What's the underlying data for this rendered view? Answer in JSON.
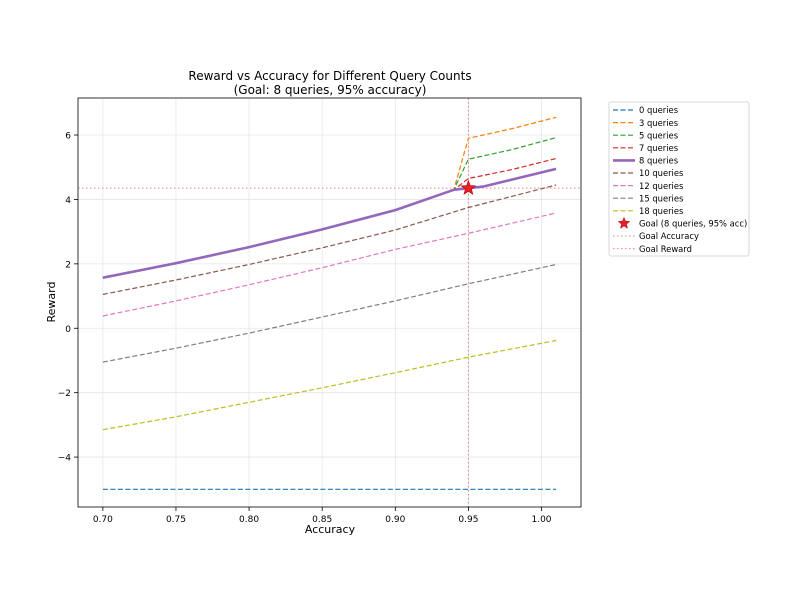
{
  "chart_data": {
    "type": "line",
    "title": "Reward vs Accuracy for Different Query Counts",
    "subtitle": "(Goal: 8 queries, 95% accuracy)",
    "xlabel": "Accuracy",
    "ylabel": "Reward",
    "xlim": [
      0.683,
      1.027
    ],
    "ylim": [
      -5.55,
      7.15
    ],
    "xticks": [
      0.7,
      0.75,
      0.8,
      0.85,
      0.9,
      0.95,
      1.0
    ],
    "xtick_labels": [
      "0.70",
      "0.75",
      "0.80",
      "0.85",
      "0.90",
      "0.95",
      "1.00"
    ],
    "yticks": [
      -4,
      -2,
      0,
      2,
      4,
      6
    ],
    "ytick_labels": [
      "−4",
      "−2",
      "0",
      "2",
      "4",
      "6"
    ],
    "grid": true,
    "legend_position": "outside-right-top",
    "series": [
      {
        "name": "0 queries",
        "color": "#1f77b4",
        "style": "dashed",
        "width": 1.2,
        "points": [
          [
            0.7,
            -5.0
          ],
          [
            1.01,
            -5.0
          ]
        ]
      },
      {
        "name": "3 queries",
        "color": "#ff7f0e",
        "style": "dashed",
        "width": 1.2,
        "points": [
          [
            0.7,
            1.57
          ],
          [
            0.75,
            2.02
          ],
          [
            0.8,
            2.52
          ],
          [
            0.85,
            3.07
          ],
          [
            0.9,
            3.67
          ],
          [
            0.94,
            4.3
          ],
          [
            0.95,
            5.9
          ],
          [
            0.98,
            6.2
          ],
          [
            1.01,
            6.55
          ]
        ]
      },
      {
        "name": "5 queries",
        "color": "#2ca02c",
        "style": "dashed",
        "width": 1.2,
        "points": [
          [
            0.7,
            1.57
          ],
          [
            0.75,
            2.02
          ],
          [
            0.8,
            2.52
          ],
          [
            0.85,
            3.07
          ],
          [
            0.9,
            3.67
          ],
          [
            0.94,
            4.3
          ],
          [
            0.95,
            5.25
          ],
          [
            0.98,
            5.55
          ],
          [
            1.01,
            5.92
          ]
        ]
      },
      {
        "name": "7 queries",
        "color": "#d62728",
        "style": "dashed",
        "width": 1.2,
        "points": [
          [
            0.7,
            1.57
          ],
          [
            0.75,
            2.02
          ],
          [
            0.8,
            2.52
          ],
          [
            0.85,
            3.07
          ],
          [
            0.9,
            3.67
          ],
          [
            0.94,
            4.3
          ],
          [
            0.95,
            4.65
          ],
          [
            0.98,
            4.93
          ],
          [
            1.01,
            5.27
          ]
        ]
      },
      {
        "name": "8 queries",
        "color": "#9467bd",
        "style": "solid",
        "width": 2.6,
        "points": [
          [
            0.7,
            1.57
          ],
          [
            0.75,
            2.02
          ],
          [
            0.8,
            2.52
          ],
          [
            0.85,
            3.07
          ],
          [
            0.9,
            3.67
          ],
          [
            0.94,
            4.3
          ],
          [
            0.95,
            4.35
          ],
          [
            0.96,
            4.4
          ],
          [
            0.98,
            4.62
          ],
          [
            1.01,
            4.95
          ]
        ]
      },
      {
        "name": "10 queries",
        "color": "#8c564b",
        "style": "dashed",
        "width": 1.2,
        "points": [
          [
            0.7,
            1.05
          ],
          [
            0.75,
            1.5
          ],
          [
            0.8,
            1.98
          ],
          [
            0.85,
            2.5
          ],
          [
            0.9,
            3.05
          ],
          [
            0.95,
            3.75
          ],
          [
            1.01,
            4.45
          ]
        ]
      },
      {
        "name": "12 queries",
        "color": "#e377c2",
        "style": "dashed",
        "width": 1.2,
        "points": [
          [
            0.7,
            0.38
          ],
          [
            0.75,
            0.85
          ],
          [
            0.8,
            1.35
          ],
          [
            0.85,
            1.88
          ],
          [
            0.9,
            2.45
          ],
          [
            0.95,
            2.95
          ],
          [
            1.01,
            3.58
          ]
        ]
      },
      {
        "name": "15 queries",
        "color": "#7f7f7f",
        "style": "dashed",
        "width": 1.2,
        "points": [
          [
            0.7,
            -1.05
          ],
          [
            0.75,
            -0.62
          ],
          [
            0.8,
            -0.15
          ],
          [
            0.85,
            0.35
          ],
          [
            0.9,
            0.85
          ],
          [
            0.95,
            1.38
          ],
          [
            1.01,
            1.98
          ]
        ]
      },
      {
        "name": "18 queries",
        "color": "#bcbd22",
        "style": "dashed",
        "width": 1.2,
        "points": [
          [
            0.7,
            -3.15
          ],
          [
            0.75,
            -2.75
          ],
          [
            0.8,
            -2.3
          ],
          [
            0.85,
            -1.85
          ],
          [
            0.9,
            -1.38
          ],
          [
            0.95,
            -0.9
          ],
          [
            1.01,
            -0.38
          ]
        ]
      }
    ],
    "goal": {
      "label": "Goal (8 queries, 95% acc)",
      "accuracy": 0.95,
      "reward": 4.35,
      "color": "#e8202a"
    },
    "reference_lines": [
      {
        "name": "Goal Accuracy",
        "orientation": "vertical",
        "value": 0.95,
        "color": "#f08080"
      },
      {
        "name": "Goal Reward",
        "orientation": "horizontal",
        "value": 4.35,
        "color": "#f08080"
      }
    ]
  }
}
